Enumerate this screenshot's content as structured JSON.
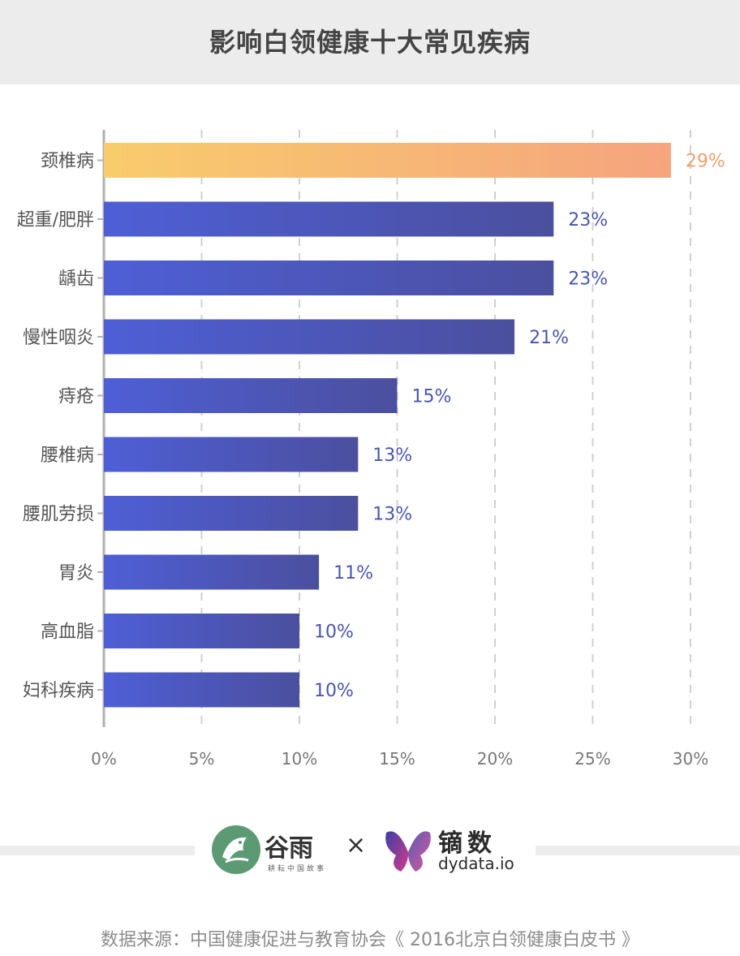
{
  "title": "影响白领健康十大常见疾病",
  "source": "数据来源：中国健康促进与教育协会《 2016北京白领健康白皮书 》",
  "logos": {
    "brand_a_name": "谷雨",
    "brand_a_tagline": "耕耘中国故事",
    "separator": "×",
    "brand_b_name": "镝数",
    "brand_b_domain": "dydata.io"
  },
  "chart_data": {
    "type": "bar",
    "orientation": "horizontal",
    "categories": [
      "颈椎病",
      "超重/肥胖",
      "龋齿",
      "慢性咽炎",
      "痔疮",
      "腰椎病",
      "腰肌劳损",
      "胃炎",
      "高血脂",
      "妇科疾病"
    ],
    "values": [
      29,
      23,
      23,
      21,
      15,
      13,
      13,
      11,
      10,
      10
    ],
    "value_labels": [
      "29%",
      "23%",
      "23%",
      "21%",
      "15%",
      "13%",
      "13%",
      "11%",
      "10%",
      "10%"
    ],
    "x_ticks": [
      0,
      5,
      10,
      15,
      20,
      25,
      30
    ],
    "x_tick_labels": [
      "0%",
      "5%",
      "10%",
      "15%",
      "20%",
      "25%",
      "30%"
    ],
    "xlim": [
      0,
      30
    ],
    "grid": "vertical dashed",
    "colors": {
      "bar": [
        "#4e5fd6",
        "#4b4f9e"
      ],
      "highlight_bar": [
        "#f8cc6c",
        "#f6a47e"
      ],
      "bar_label": "#4a55b0",
      "highlight_label": "#f0a070",
      "axis": "#b0b0b0",
      "category_label": "#555555",
      "tick_label": "#777777"
    }
  }
}
